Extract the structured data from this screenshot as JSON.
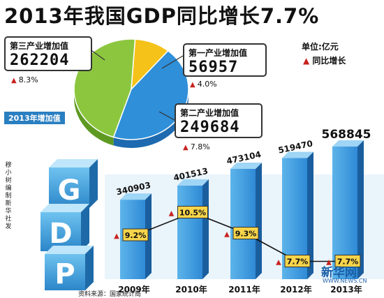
{
  "headline": "2013年我国GDP同比增长7.7%",
  "unit_label": "单位:亿元",
  "growth_legend": "同比增长",
  "pie_caption": "2013年增加值",
  "credit_text": "穆小树编制 新华社发",
  "source_text": "资料来源：国家统计局",
  "watermark": "新华网",
  "watermark_url": "WWW.NEWS.CN",
  "cube_letters": [
    "G",
    "D",
    "P"
  ],
  "colors": {
    "tertiary": "#8cc63f",
    "primary": "#f5c21a",
    "secondary": "#2f8fd8",
    "bar": "#2f8ad6",
    "growth_arrow": "#c8231f"
  },
  "chart_data": [
    {
      "type": "pie",
      "categories": [
        "第三产业增加值",
        "第一产业增加值",
        "第二产业增加值"
      ],
      "values": [
        262204,
        56957,
        249684
      ],
      "growth": [
        "8.3%",
        "4.0%",
        "7.8%"
      ]
    },
    {
      "type": "bar",
      "categories": [
        "2009年",
        "2010年",
        "2011年",
        "2012年",
        "2013年"
      ],
      "values": [
        340903,
        401513,
        473104,
        519470,
        568845
      ],
      "value_labels": [
        "340903",
        "401513",
        "473104",
        "519470",
        "568845"
      ],
      "growth": [
        9.2,
        10.5,
        9.3,
        7.7,
        7.7
      ],
      "growth_labels": [
        "9.2%",
        "10.5%",
        "9.3%",
        "7.7%",
        "7.7%"
      ]
    }
  ]
}
